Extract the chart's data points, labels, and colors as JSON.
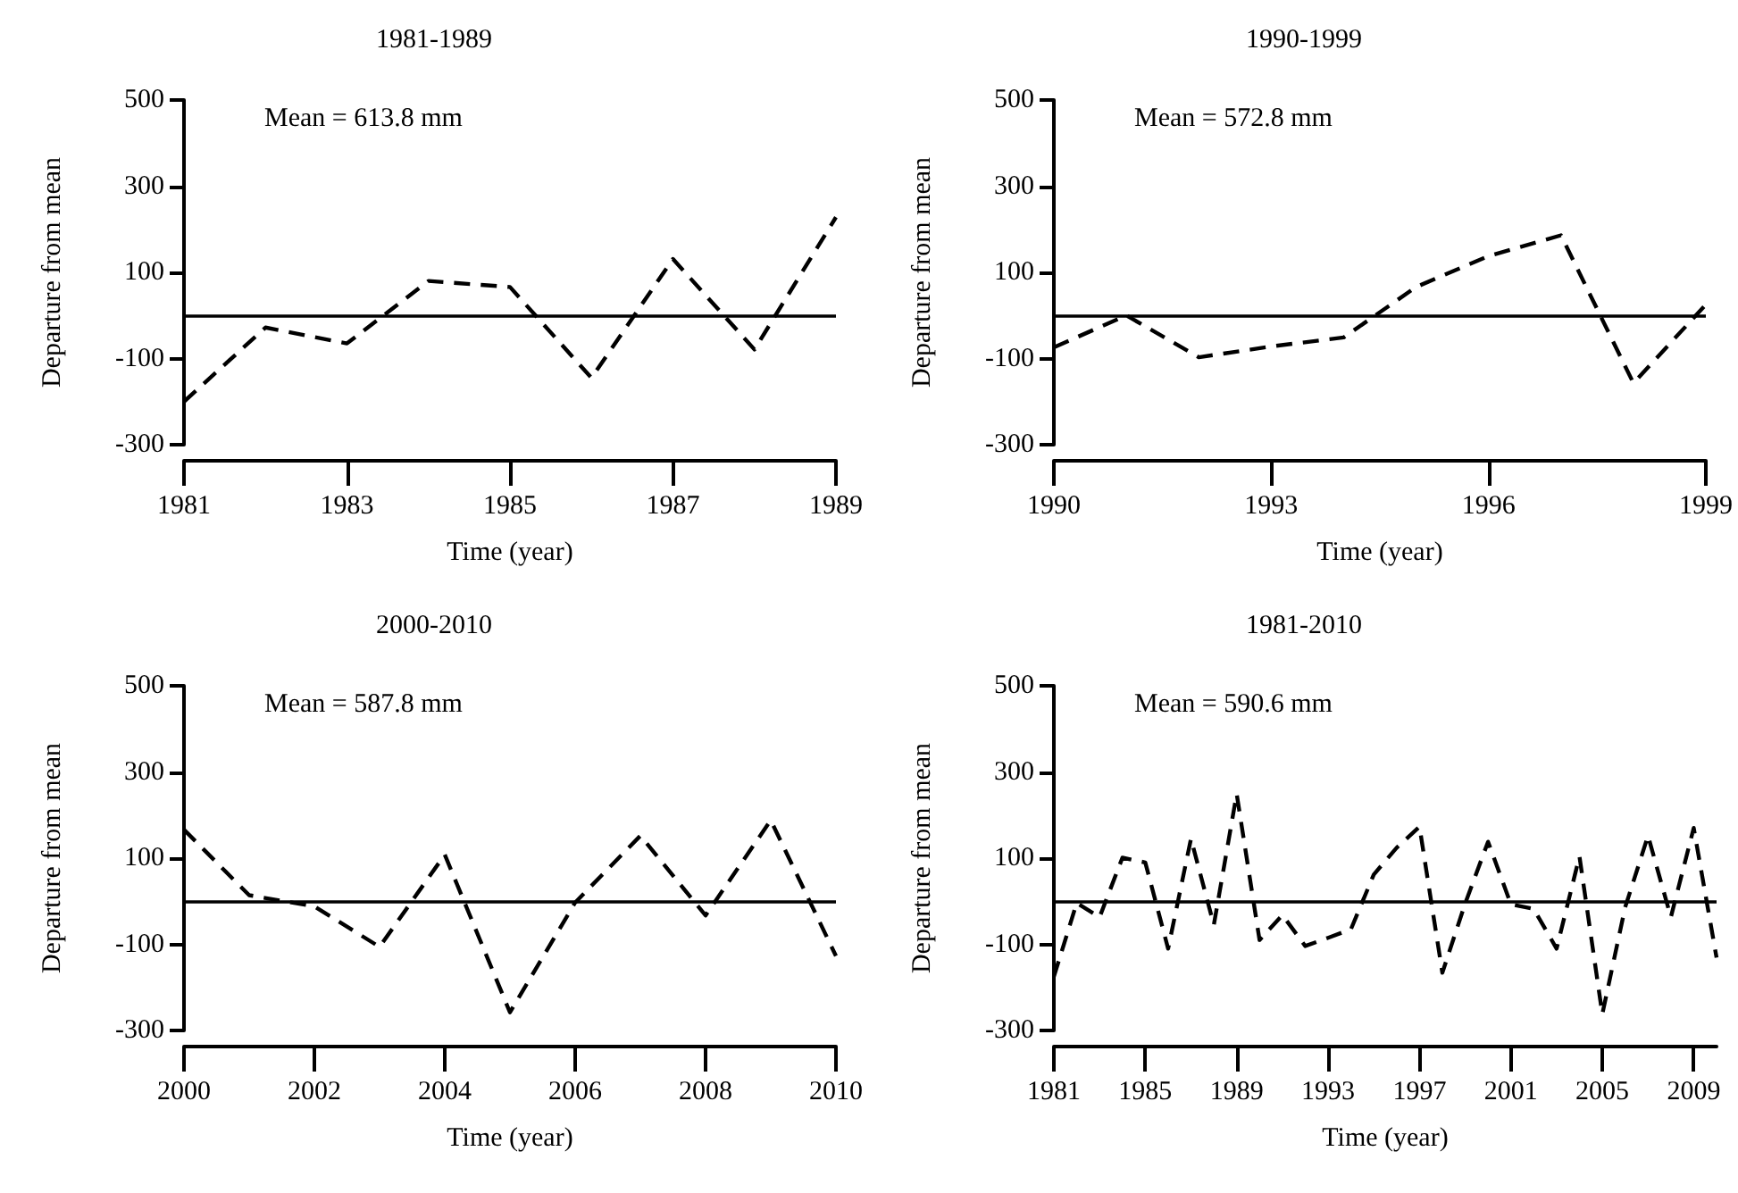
{
  "chart_data": [
    {
      "type": "line",
      "title": "1981-1989",
      "xlabel": "Time (year)",
      "ylabel": "Departure from mean",
      "annotations": [
        "Mean = 613.8 mm"
      ],
      "x": [
        1981,
        1982,
        1983,
        1984,
        1985,
        1986,
        1987,
        1988,
        1989
      ],
      "series": [
        {
          "color": "#000000",
          "values": [
            -200,
            -28,
            -65,
            80,
            66,
            -145,
            131,
            -79,
            228
          ]
        }
      ],
      "xlim": [
        1981,
        1989
      ],
      "xticks": [
        1981,
        1983,
        1985,
        1987,
        1989
      ],
      "ylim": [
        -300,
        500
      ],
      "yticks": [
        -300,
        -100,
        100,
        300,
        500
      ],
      "line_style": "dashed",
      "ref_lines": [
        {
          "axis": "y",
          "value": 0,
          "color": "#000000",
          "line_style": "solid"
        }
      ]
    },
    {
      "type": "line",
      "title": "1990-1999",
      "xlabel": "Time (year)",
      "ylabel": "Departure from mean",
      "annotations": [
        "Mean = 572.8 mm"
      ],
      "x": [
        1990,
        1991,
        1992,
        1993,
        1994,
        1995,
        1996,
        1997,
        1998,
        1999
      ],
      "series": [
        {
          "color": "#000000",
          "values": [
            -74,
            0,
            -97,
            -72,
            -51,
            66,
            138,
            186,
            -157,
            25
          ]
        }
      ],
      "xlim": [
        1990,
        1999
      ],
      "xticks": [
        1990,
        1993,
        1996,
        1999
      ],
      "ylim": [
        -300,
        500
      ],
      "yticks": [
        -300,
        -100,
        100,
        300,
        500
      ],
      "line_style": "dashed",
      "ref_lines": [
        {
          "axis": "y",
          "value": 0,
          "color": "#000000",
          "line_style": "solid"
        }
      ]
    },
    {
      "type": "line",
      "title": "2000-2010",
      "xlabel": "Time (year)",
      "ylabel": "Departure from mean",
      "annotations": [
        "Mean = 587.8 mm"
      ],
      "x": [
        2000,
        2001,
        2002,
        2003,
        2004,
        2005,
        2006,
        2007,
        2008,
        2009,
        2010
      ],
      "series": [
        {
          "color": "#000000",
          "values": [
            166,
            14,
            -12,
            -106,
            108,
            -258,
            -3,
            152,
            -33,
            188,
            -127
          ]
        }
      ],
      "xlim": [
        2000,
        2010
      ],
      "xticks": [
        2000,
        2002,
        2004,
        2006,
        2008,
        2010
      ],
      "ylim": [
        -300,
        500
      ],
      "yticks": [
        -300,
        -100,
        100,
        300,
        500
      ],
      "line_style": "dashed",
      "ref_lines": [
        {
          "axis": "y",
          "value": 0,
          "color": "#000000",
          "line_style": "solid"
        }
      ]
    },
    {
      "type": "line",
      "title": "1981-2010",
      "xlabel": "Time (year)",
      "ylabel": "Departure from mean",
      "annotations": [
        "Mean = 590.6 mm"
      ],
      "x": [
        1981,
        1982,
        1983,
        1984,
        1985,
        1986,
        1987,
        1988,
        1989,
        1990,
        1991,
        1992,
        1993,
        1994,
        1995,
        1996,
        1997,
        1998,
        1999,
        2000,
        2001,
        2002,
        2003,
        2004,
        2005,
        2006,
        2007,
        2008,
        2009,
        2010
      ],
      "series": [
        {
          "color": "#000000",
          "values": [
            -175,
            -4,
            -37,
            101,
            90,
            -110,
            145,
            -55,
            249,
            -90,
            -32,
            -104,
            -85,
            -65,
            62,
            124,
            173,
            -166,
            -5,
            138,
            -7,
            -18,
            -110,
            104,
            -262,
            -14,
            152,
            -37,
            170,
            -131
          ]
        }
      ],
      "xlim": [
        1981,
        2010
      ],
      "xticks": [
        1981,
        1985,
        1989,
        1993,
        1997,
        2001,
        2005,
        2009
      ],
      "ylim": [
        -300,
        500
      ],
      "yticks": [
        -300,
        -100,
        100,
        300,
        500
      ],
      "line_style": "dashed",
      "ref_lines": [
        {
          "axis": "y",
          "value": 0,
          "color": "#000000",
          "line_style": "solid"
        }
      ]
    }
  ]
}
